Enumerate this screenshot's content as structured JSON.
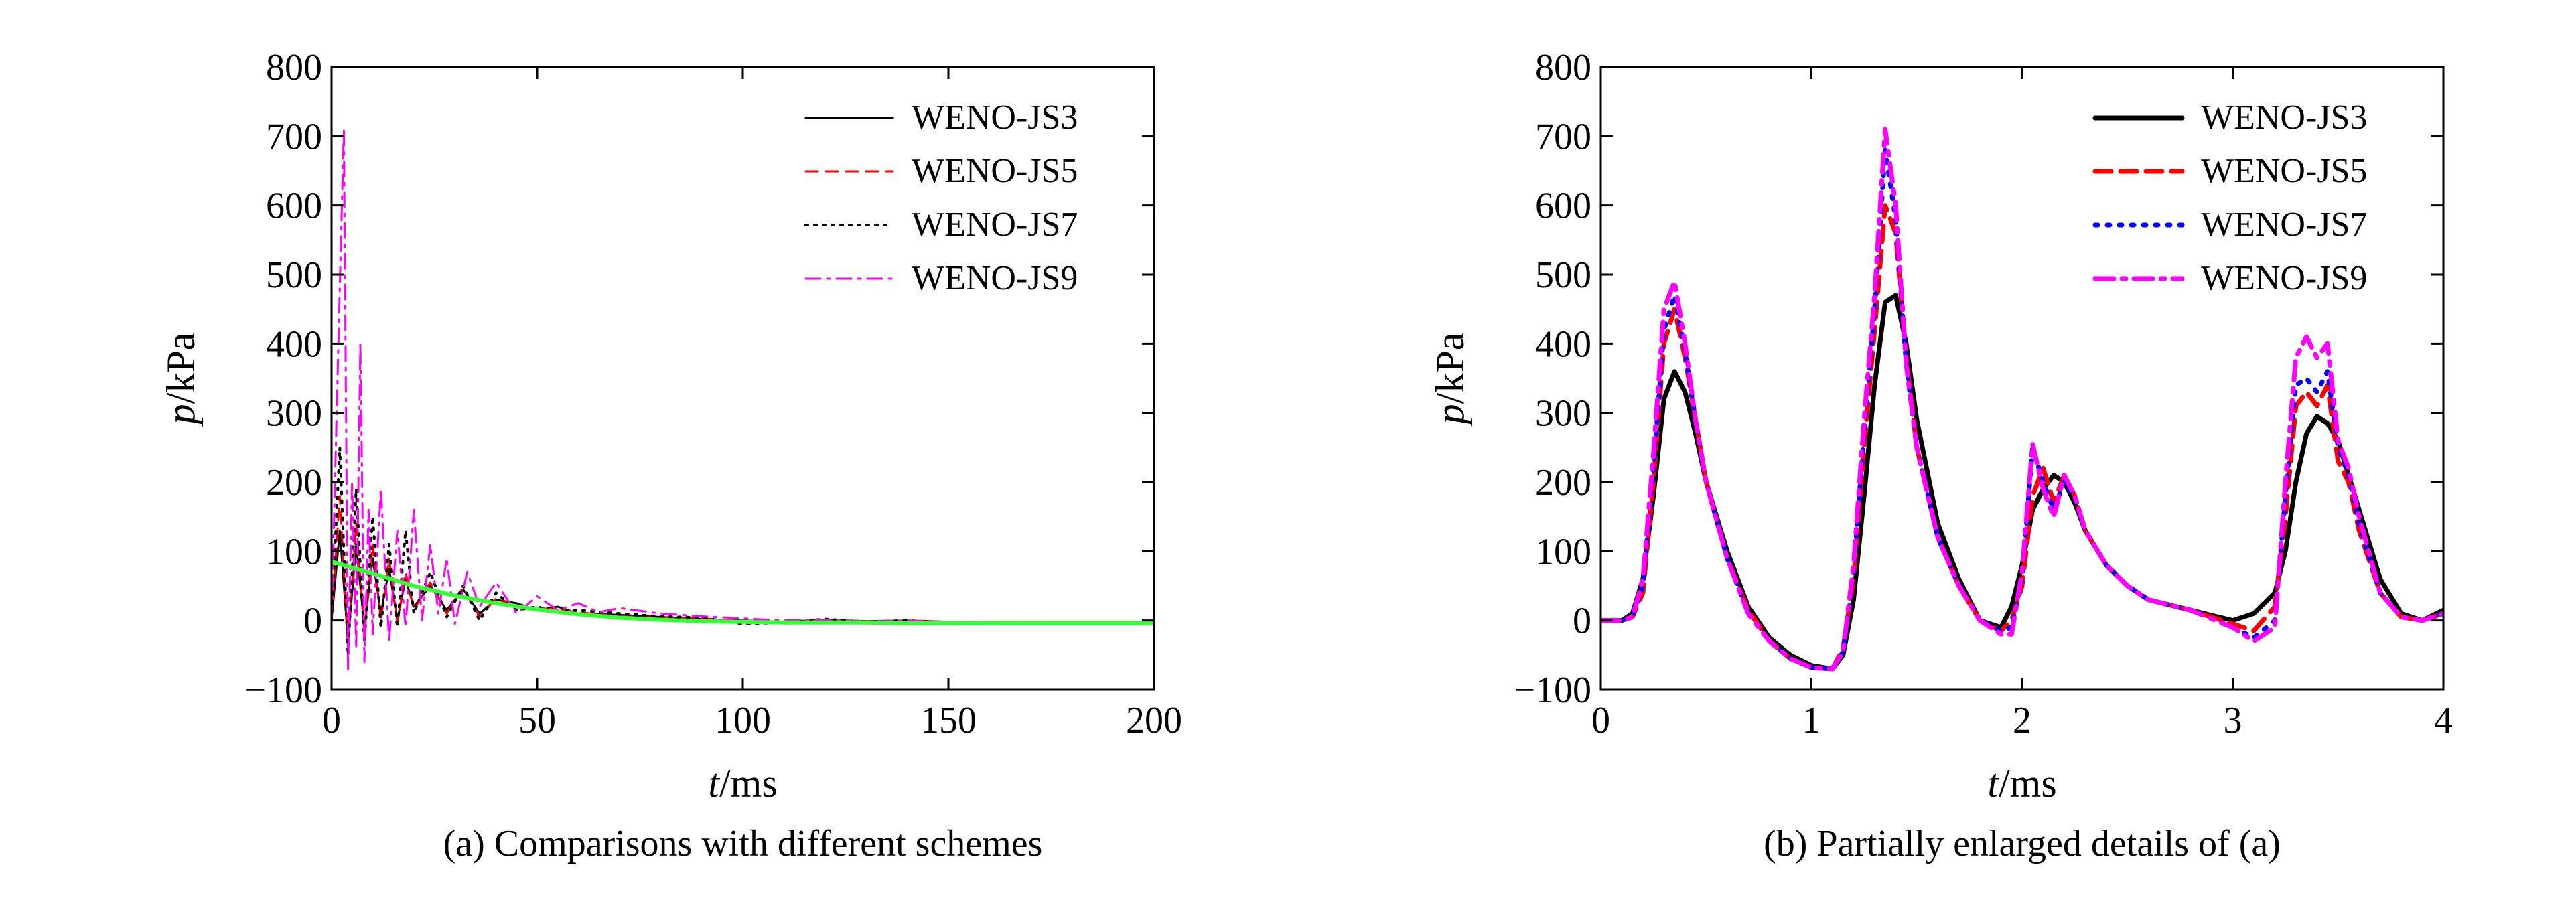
{
  "chart_data": [
    {
      "type": "line",
      "caption": "(a) Comparisons with different schemes",
      "xlabel": "t/ms",
      "ylabel": "p/kPa",
      "xlim": [
        0,
        200
      ],
      "ylim": [
        -100,
        800
      ],
      "xticks": [
        0,
        50,
        100,
        150,
        200
      ],
      "yticks": [
        -100,
        0,
        100,
        200,
        300,
        400,
        500,
        600,
        700,
        800
      ],
      "legend_position": "top-right",
      "series": [
        {
          "name": "WENO-JS3",
          "color": "#000000",
          "style": "solid",
          "x": [
            0,
            2,
            4,
            6,
            8,
            10,
            12,
            14,
            16,
            18,
            20,
            24,
            28,
            32,
            36,
            40,
            45,
            50,
            55,
            60,
            70,
            80,
            90,
            100,
            110,
            120,
            130,
            140,
            150,
            160,
            170,
            180,
            190,
            200
          ],
          "y": [
            0,
            130,
            -30,
            110,
            -10,
            90,
            10,
            75,
            0,
            60,
            20,
            50,
            15,
            45,
            10,
            30,
            25,
            15,
            20,
            10,
            8,
            5,
            2,
            0,
            -2,
            1,
            -1,
            0,
            -2,
            -3,
            -3,
            -4,
            -4,
            -4
          ]
        },
        {
          "name": "WENO-JS5",
          "color": "#ff0000",
          "style": "dashed",
          "x": [
            0,
            2,
            4,
            6,
            8,
            10,
            12,
            14,
            16,
            18,
            20,
            24,
            28,
            32,
            36,
            40,
            45,
            50,
            55,
            60,
            70,
            80,
            90,
            100,
            110,
            120,
            130,
            140,
            150,
            160,
            170,
            180,
            190,
            200
          ],
          "y": [
            0,
            180,
            -40,
            140,
            -20,
            110,
            0,
            90,
            -5,
            70,
            15,
            55,
            10,
            48,
            5,
            32,
            20,
            18,
            16,
            12,
            6,
            4,
            3,
            -1,
            -2,
            0,
            -1,
            -1,
            -2,
            -3,
            -3,
            -4,
            -4,
            -4
          ]
        },
        {
          "name": "WENO-JS7",
          "color": "#000000",
          "style": "dotted",
          "x": [
            0,
            2,
            4,
            6,
            8,
            10,
            12,
            14,
            16,
            18,
            20,
            24,
            28,
            32,
            36,
            40,
            45,
            50,
            55,
            60,
            70,
            80,
            90,
            100,
            110,
            120,
            130,
            140,
            150,
            160,
            170,
            180,
            190,
            200
          ],
          "y": [
            0,
            250,
            -50,
            190,
            -30,
            150,
            -10,
            110,
            -10,
            130,
            10,
            70,
            5,
            50,
            0,
            40,
            15,
            20,
            12,
            15,
            10,
            6,
            4,
            -5,
            -3,
            2,
            -2,
            0,
            -3,
            -5,
            -3,
            -4,
            -4,
            -4
          ]
        },
        {
          "name": "WENO-JS9",
          "color": "#ff00ff",
          "style": "dashdot",
          "x": [
            0,
            2,
            3,
            4,
            5,
            6,
            7,
            8,
            9,
            10,
            12,
            14,
            16,
            18,
            20,
            22,
            24,
            26,
            28,
            30,
            33,
            36,
            40,
            45,
            50,
            55,
            60,
            65,
            70,
            80,
            90,
            100,
            110,
            120,
            130,
            140,
            150,
            160,
            170,
            180,
            190,
            200
          ],
          "y": [
            0,
            480,
            710,
            -70,
            200,
            -40,
            400,
            -60,
            160,
            -20,
            190,
            -30,
            130,
            -10,
            160,
            0,
            110,
            10,
            90,
            -5,
            70,
            20,
            55,
            10,
            35,
            15,
            25,
            12,
            18,
            10,
            6,
            3,
            0,
            1,
            -1,
            0,
            -2,
            -3,
            -3,
            -4,
            -4,
            -4
          ]
        },
        {
          "name": "",
          "color": "#33ff33",
          "style": "solid-thick",
          "x": [
            0,
            10,
            20,
            30,
            40,
            50,
            60,
            70,
            80,
            90,
            100,
            110,
            120,
            130,
            140,
            150,
            160,
            170,
            180,
            190,
            200
          ],
          "y": [
            85,
            68,
            50,
            36,
            25,
            16,
            9,
            4,
            1,
            -1,
            -2,
            -3,
            -3,
            -3,
            -4,
            -4,
            -4,
            -4,
            -4,
            -4,
            -4
          ]
        }
      ]
    },
    {
      "type": "line",
      "caption": "(b) Partially enlarged details of (a)",
      "xlabel": "t/ms",
      "ylabel": "p/kPa",
      "xlim": [
        0,
        4
      ],
      "ylim": [
        -100,
        800
      ],
      "xticks": [
        0,
        1,
        2,
        3,
        4
      ],
      "yticks": [
        -100,
        0,
        100,
        200,
        300,
        400,
        500,
        600,
        700,
        800
      ],
      "legend_position": "top-right",
      "series": [
        {
          "name": "WENO-JS3",
          "color": "#000000",
          "style": "solid",
          "x": [
            0,
            0.1,
            0.15,
            0.2,
            0.25,
            0.3,
            0.35,
            0.4,
            0.45,
            0.5,
            0.6,
            0.7,
            0.8,
            0.9,
            1.0,
            1.1,
            1.15,
            1.2,
            1.25,
            1.3,
            1.35,
            1.4,
            1.45,
            1.5,
            1.6,
            1.7,
            1.8,
            1.9,
            1.95,
            2.0,
            2.05,
            2.1,
            2.15,
            2.2,
            2.25,
            2.3,
            2.4,
            2.5,
            2.6,
            2.8,
            3.0,
            3.1,
            3.2,
            3.25,
            3.3,
            3.35,
            3.4,
            3.45,
            3.5,
            3.55,
            3.6,
            3.7,
            3.8,
            3.9,
            4.0
          ],
          "y": [
            0,
            0,
            10,
            60,
            180,
            320,
            360,
            330,
            270,
            200,
            100,
            20,
            -25,
            -50,
            -65,
            -70,
            -50,
            30,
            180,
            340,
            460,
            470,
            400,
            290,
            140,
            60,
            0,
            -10,
            20,
            80,
            160,
            190,
            210,
            200,
            170,
            130,
            80,
            50,
            30,
            15,
            0,
            10,
            40,
            100,
            200,
            270,
            295,
            285,
            260,
            210,
            160,
            60,
            10,
            0,
            15
          ]
        },
        {
          "name": "WENO-JS5",
          "color": "#ff0000",
          "style": "dashed",
          "x": [
            0,
            0.1,
            0.15,
            0.2,
            0.25,
            0.3,
            0.35,
            0.4,
            0.45,
            0.5,
            0.6,
            0.7,
            0.8,
            0.9,
            1.0,
            1.1,
            1.15,
            1.2,
            1.25,
            1.3,
            1.35,
            1.4,
            1.45,
            1.5,
            1.6,
            1.7,
            1.8,
            1.9,
            1.95,
            2.0,
            2.05,
            2.1,
            2.15,
            2.2,
            2.25,
            2.3,
            2.4,
            2.5,
            2.6,
            2.8,
            3.0,
            3.1,
            3.2,
            3.25,
            3.3,
            3.35,
            3.4,
            3.45,
            3.5,
            3.55,
            3.6,
            3.7,
            3.8,
            3.9,
            4.0
          ],
          "y": [
            0,
            0,
            5,
            40,
            200,
            400,
            450,
            380,
            290,
            200,
            90,
            15,
            -30,
            -55,
            -68,
            -70,
            -40,
            60,
            250,
            420,
            600,
            560,
            380,
            250,
            120,
            50,
            0,
            -15,
            0,
            50,
            180,
            220,
            170,
            210,
            180,
            130,
            80,
            50,
            30,
            15,
            -5,
            -15,
            20,
            150,
            310,
            330,
            310,
            340,
            230,
            200,
            130,
            40,
            5,
            0,
            10
          ]
        },
        {
          "name": "WENO-JS7",
          "color": "#0000ff",
          "style": "dotted",
          "x": [
            0,
            0.1,
            0.15,
            0.2,
            0.25,
            0.3,
            0.35,
            0.4,
            0.45,
            0.5,
            0.6,
            0.7,
            0.8,
            0.9,
            1.0,
            1.1,
            1.15,
            1.2,
            1.25,
            1.3,
            1.35,
            1.4,
            1.45,
            1.5,
            1.6,
            1.7,
            1.8,
            1.9,
            1.95,
            2.0,
            2.05,
            2.1,
            2.15,
            2.2,
            2.25,
            2.3,
            2.4,
            2.5,
            2.6,
            2.8,
            3.0,
            3.1,
            3.2,
            3.25,
            3.3,
            3.35,
            3.4,
            3.45,
            3.5,
            3.55,
            3.6,
            3.7,
            3.8,
            3.9,
            4.0
          ],
          "y": [
            0,
            0,
            5,
            50,
            220,
            420,
            470,
            390,
            290,
            200,
            90,
            10,
            -30,
            -55,
            -68,
            -70,
            -45,
            70,
            270,
            450,
            680,
            580,
            370,
            250,
            120,
            50,
            0,
            -15,
            -10,
            60,
            250,
            200,
            160,
            200,
            180,
            130,
            80,
            50,
            30,
            15,
            -10,
            -25,
            0,
            180,
            340,
            350,
            330,
            360,
            250,
            210,
            140,
            40,
            5,
            0,
            10
          ]
        },
        {
          "name": "WENO-JS9",
          "color": "#ff00ff",
          "style": "dashdot",
          "x": [
            0,
            0.1,
            0.15,
            0.2,
            0.25,
            0.3,
            0.35,
            0.4,
            0.45,
            0.5,
            0.6,
            0.7,
            0.8,
            0.9,
            1.0,
            1.1,
            1.15,
            1.2,
            1.25,
            1.3,
            1.35,
            1.4,
            1.45,
            1.5,
            1.6,
            1.7,
            1.8,
            1.9,
            1.95,
            2.0,
            2.05,
            2.1,
            2.15,
            2.2,
            2.25,
            2.3,
            2.4,
            2.5,
            2.6,
            2.8,
            3.0,
            3.1,
            3.2,
            3.25,
            3.3,
            3.35,
            3.4,
            3.45,
            3.5,
            3.55,
            3.6,
            3.7,
            3.8,
            3.9,
            4.0
          ],
          "y": [
            0,
            0,
            5,
            60,
            240,
            450,
            490,
            400,
            290,
            200,
            90,
            10,
            -30,
            -55,
            -68,
            -70,
            -45,
            80,
            290,
            470,
            710,
            600,
            370,
            250,
            120,
            50,
            0,
            -20,
            -20,
            70,
            255,
            190,
            150,
            210,
            180,
            130,
            80,
            50,
            30,
            15,
            -10,
            -30,
            -10,
            200,
            380,
            410,
            380,
            400,
            260,
            220,
            150,
            40,
            5,
            0,
            10
          ]
        }
      ]
    }
  ]
}
